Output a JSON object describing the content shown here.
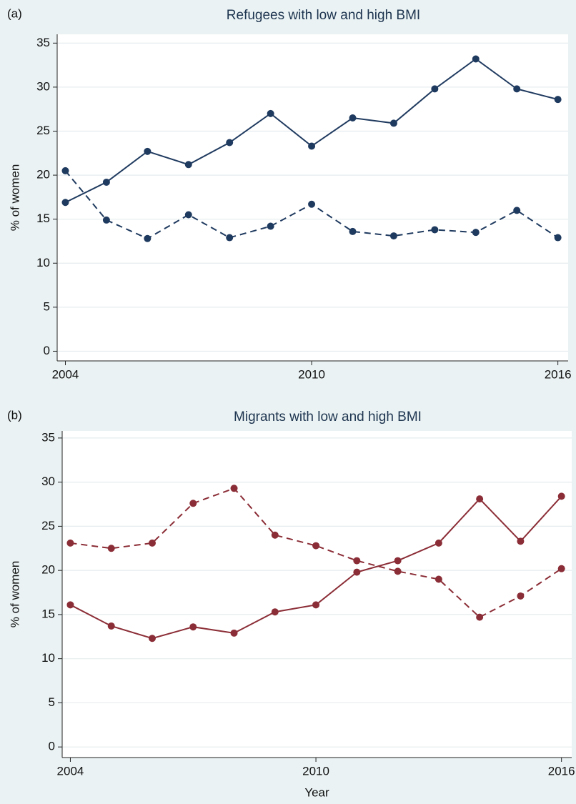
{
  "chart_data": [
    {
      "type": "line",
      "label": "(a)",
      "title": "Refugees with low and high BMI",
      "ylabel": "% of women",
      "x": [
        2004,
        2005,
        2006,
        2007,
        2008,
        2009,
        2010,
        2011,
        2012,
        2013,
        2014,
        2015,
        2016
      ],
      "series": [
        {
          "color": "#1f3a5f",
          "style": "solid",
          "values": [
            16.9,
            19.2,
            22.7,
            21.2,
            23.7,
            27.0,
            23.3,
            26.5,
            25.9,
            29.8,
            33.2,
            29.8,
            28.6
          ]
        },
        {
          "color": "#1f3a5f",
          "style": "dash",
          "values": [
            20.5,
            14.9,
            12.8,
            15.5,
            12.9,
            14.2,
            16.7,
            13.6,
            13.1,
            13.8,
            13.5,
            16.0,
            12.9
          ]
        }
      ],
      "xlim": [
        2003.8,
        2016.25
      ],
      "xticks": [
        2004,
        2010,
        2016
      ],
      "ylim": [
        -1.1,
        36
      ],
      "yticks": [
        0,
        5,
        10,
        15,
        20,
        25,
        30,
        35
      ],
      "grid": true
    },
    {
      "type": "line",
      "label": "(b)",
      "title": "Migrants with low and high BMI",
      "ylabel": "% of women",
      "xlabel": "Year",
      "x": [
        2004,
        2005,
        2006,
        2007,
        2008,
        2009,
        2010,
        2011,
        2012,
        2013,
        2014,
        2015,
        2016
      ],
      "series": [
        {
          "color": "#8b2d36",
          "style": "solid",
          "values": [
            16.1,
            13.7,
            12.3,
            13.6,
            12.9,
            15.3,
            16.1,
            19.8,
            21.1,
            23.1,
            28.1,
            23.3,
            28.4
          ]
        },
        {
          "color": "#8b2d36",
          "style": "dash",
          "values": [
            23.1,
            22.5,
            23.1,
            27.6,
            29.3,
            24.0,
            22.8,
            21.1,
            19.9,
            19.0,
            14.7,
            17.1,
            20.2
          ]
        }
      ],
      "xlim": [
        2003.8,
        2016.25
      ],
      "xticks": [
        2004,
        2010,
        2016
      ],
      "ylim": [
        -1.2,
        35.8
      ],
      "yticks": [
        0,
        5,
        10,
        15,
        20,
        25,
        30,
        35
      ],
      "grid": true
    }
  ]
}
